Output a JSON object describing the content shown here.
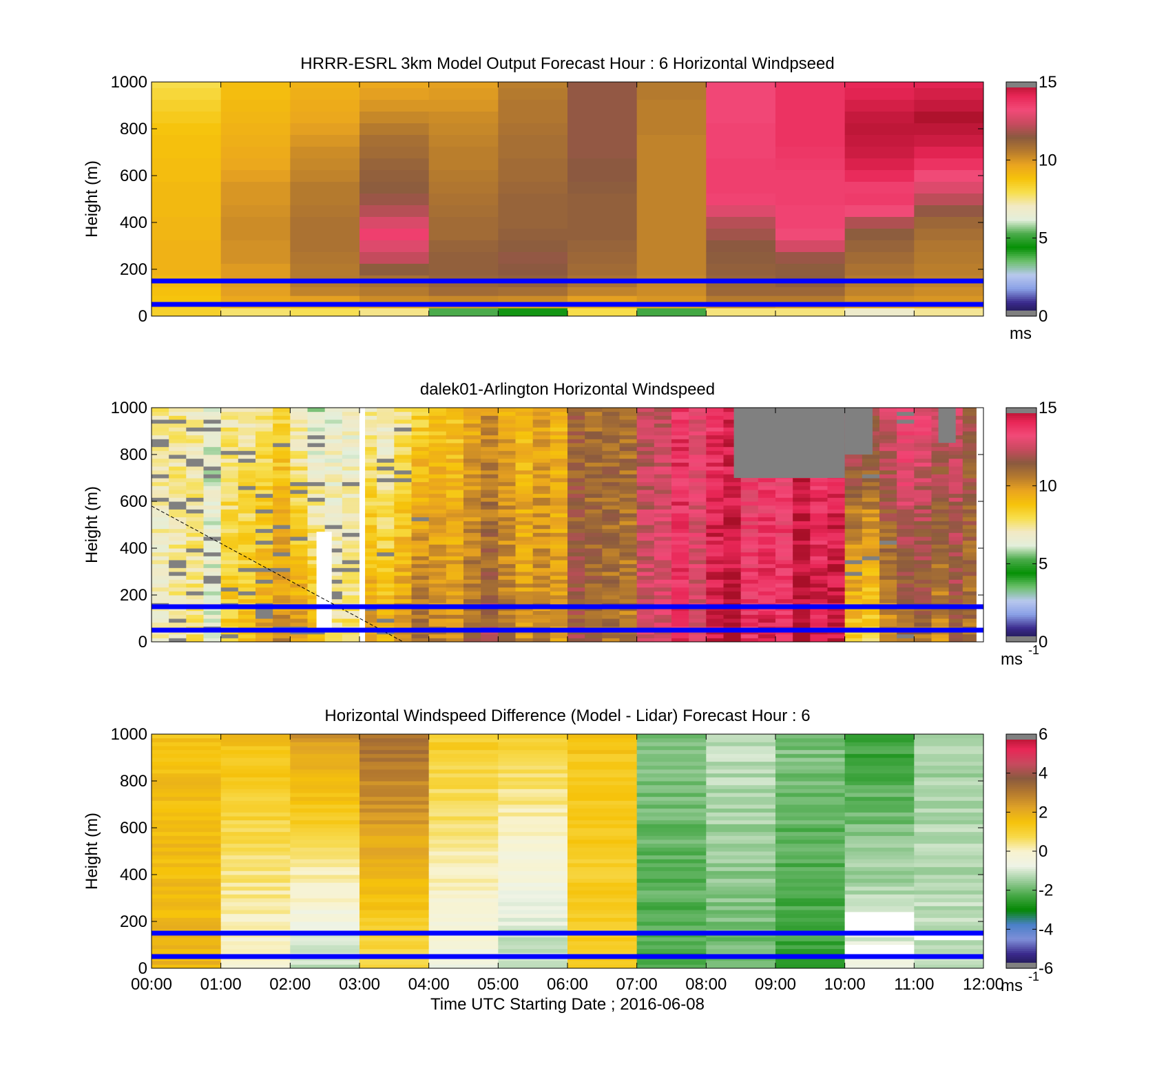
{
  "colors": {
    "speed_stops": [
      "#191440",
      "#3a2a8c",
      "#8aa0e6",
      "#b8c8ee",
      "#6cc06c",
      "#059005",
      "#4aab4a",
      "#e3efdb",
      "#f2e9c4",
      "#f7df4e",
      "#f6c30b",
      "#eaa41f",
      "#b57a2e",
      "#8a5a3f",
      "#c84a5f",
      "#f24a78",
      "#e82656",
      "#a80f28"
    ],
    "diff_stops": [
      "#191440",
      "#3a2a8c",
      "#7f8fd8",
      "#4a80c8",
      "#058805",
      "#46a846",
      "#9ccd9c",
      "#eef3e6",
      "#f8f3d0",
      "#f7d94a",
      "#f6c30b",
      "#dfa227",
      "#b57a2e",
      "#8a5a3f",
      "#c84a5f",
      "#e82656",
      "#a80f28"
    ],
    "missing": "#808080",
    "blank": "#ffffff",
    "level_line": "#0000ff"
  },
  "time_axis": {
    "labels": [
      "00:00",
      "01:00",
      "02:00",
      "03:00",
      "04:00",
      "05:00",
      "06:00",
      "07:00",
      "08:00",
      "09:00",
      "10:00",
      "11:00",
      "12:00"
    ],
    "xlabel": "Time UTC  Starting Date ; 2016-06-08"
  },
  "chart_data": [
    {
      "type": "heatmap",
      "title": "HRRR-ESRL 3km Model Output   Forecast Hour : 6 Horizontal Windpseed",
      "ylabel": "Height (m)",
      "yticks": [
        "0",
        "200",
        "400",
        "600",
        "800",
        "1000"
      ],
      "ylim": [
        0,
        1000
      ],
      "xlim_hours": [
        0,
        12
      ],
      "colorbar": {
        "range": [
          0,
          15
        ],
        "ticks": [
          "0",
          "5",
          "10",
          "15"
        ],
        "unit": "ms"
      },
      "level_lines_m": [
        50,
        150
      ],
      "value_units": "m/s",
      "hours": [
        0.5,
        1.5,
        2.5,
        3.5,
        4.5,
        5.5,
        6.5,
        7.5,
        8.5,
        9.5,
        10.5,
        11.5
      ],
      "heights_m": [
        20,
        50,
        75,
        100,
        150,
        200,
        250,
        300,
        350,
        400,
        450,
        500,
        550,
        600,
        650,
        700,
        750,
        800,
        850,
        900,
        950,
        1000
      ],
      "values": [
        [
          8.4,
          8.6,
          8.8,
          8.9,
          9.1,
          9.3,
          9.3,
          9.3,
          9.2,
          9.2,
          9.1,
          9.1,
          9.1,
          9.0,
          9.0,
          8.9,
          8.9,
          8.8,
          8.6,
          8.4,
          8.2,
          8.0
        ],
        [
          7.7,
          9.3,
          9.6,
          9.8,
          9.9,
          9.9,
          10.1,
          10.1,
          10.2,
          10.2,
          10.1,
          10.0,
          10.0,
          9.8,
          9.6,
          9.5,
          9.4,
          9.3,
          9.2,
          9.1,
          9.0,
          9.0
        ],
        [
          7.9,
          9.2,
          9.8,
          10.4,
          10.6,
          10.6,
          10.7,
          10.8,
          10.8,
          10.8,
          10.7,
          10.6,
          10.6,
          10.4,
          10.3,
          10.2,
          10.0,
          9.8,
          9.6,
          9.5,
          9.4,
          9.3
        ],
        [
          7.5,
          9.6,
          10.2,
          10.6,
          10.9,
          11.4,
          12.3,
          12.8,
          13.5,
          12.7,
          12.1,
          11.7,
          11.4,
          11.3,
          11.2,
          11.0,
          10.9,
          10.6,
          10.3,
          10.0,
          9.8,
          9.6
        ],
        [
          5.3,
          9.9,
          10.3,
          11.0,
          11.2,
          11.3,
          11.3,
          11.2,
          11.0,
          11.0,
          10.9,
          10.8,
          10.7,
          10.6,
          10.5,
          10.5,
          10.4,
          10.3,
          10.2,
          10.0,
          9.9,
          9.8
        ],
        [
          4.6,
          9.6,
          10.2,
          10.9,
          11.3,
          11.5,
          11.6,
          11.4,
          11.3,
          11.2,
          11.2,
          11.2,
          11.1,
          11.0,
          11.0,
          10.9,
          10.9,
          10.8,
          10.7,
          10.7,
          10.6,
          10.5
        ],
        [
          8.0,
          9.4,
          9.8,
          10.4,
          10.8,
          11.0,
          11.1,
          11.2,
          11.3,
          11.3,
          11.3,
          11.3,
          11.4,
          11.5,
          11.5,
          11.6,
          11.6,
          11.6,
          11.6,
          11.6,
          11.6,
          11.6
        ],
        [
          5.2,
          9.6,
          10.0,
          10.2,
          10.3,
          10.4,
          10.4,
          10.4,
          10.4,
          10.4,
          10.4,
          10.4,
          10.4,
          10.4,
          10.4,
          10.4,
          10.4,
          10.5,
          10.5,
          10.5,
          10.6,
          10.6
        ],
        [
          7.6,
          10.1,
          10.6,
          11.1,
          11.2,
          11.3,
          11.4,
          11.5,
          11.8,
          12.1,
          12.8,
          13.4,
          13.5,
          13.5,
          13.5,
          13.4,
          13.4,
          13.4,
          13.3,
          13.3,
          13.3,
          13.3
        ],
        [
          7.6,
          9.9,
          10.6,
          11.1,
          11.4,
          11.4,
          11.7,
          12.6,
          13.2,
          13.4,
          13.4,
          13.5,
          13.5,
          13.5,
          13.6,
          13.7,
          13.8,
          13.8,
          13.8,
          13.8,
          13.8,
          13.8
        ],
        [
          6.8,
          9.6,
          10.1,
          10.4,
          10.6,
          10.8,
          11.0,
          11.2,
          11.4,
          12.0,
          13.2,
          13.6,
          13.5,
          14.0,
          14.3,
          14.5,
          14.6,
          14.7,
          14.6,
          14.4,
          14.2,
          14.1
        ],
        [
          7.4,
          9.6,
          10.0,
          10.2,
          10.4,
          10.5,
          10.6,
          10.7,
          10.9,
          11.1,
          11.6,
          12.2,
          12.8,
          13.2,
          13.8,
          14.2,
          14.5,
          14.7,
          14.9,
          14.6,
          14.4,
          14.2
        ]
      ]
    },
    {
      "type": "heatmap",
      "title": "dalek01-Arlington  Horizontal Windspeed",
      "ylabel": "Height (m)",
      "yticks": [
        "0",
        "200",
        "400",
        "600",
        "800",
        "1000"
      ],
      "ylim": [
        0,
        1000
      ],
      "xlim_hours": [
        0,
        12
      ],
      "colorbar": {
        "range": [
          0,
          15
        ],
        "ticks": [
          "0",
          "5",
          "10",
          "15"
        ],
        "unit": "ms",
        "unit_exp": "-1"
      },
      "level_lines_m": [
        50,
        150
      ],
      "dashed_line": {
        "x_hours": [
          0.0,
          3.63
        ],
        "y_m": [
          580,
          0
        ]
      },
      "value_units": "m/s",
      "data_end_hour": 11.9,
      "columns_per_hour": 4,
      "rows": 60,
      "column_profiles": [
        {
          "from": 0.0,
          "to": 0.5,
          "v_bottom": 6.6,
          "v_top": 7.0,
          "missing": 0.14
        },
        {
          "from": 0.5,
          "to": 1.0,
          "v_bottom": 7.3,
          "v_top": 6.8,
          "missing": 0.12
        },
        {
          "from": 1.0,
          "to": 1.5,
          "v_bottom": 8.6,
          "v_top": 7.2,
          "missing": 0.08
        },
        {
          "from": 1.5,
          "to": 2.0,
          "v_bottom": 9.6,
          "v_top": 7.5,
          "missing": 0.08
        },
        {
          "from": 2.0,
          "to": 2.5,
          "v_bottom": 9.8,
          "v_top": 6.6,
          "missing": 0.06
        },
        {
          "from": 2.5,
          "to": 3.0,
          "v_bottom": 7.6,
          "v_top": 6.4,
          "missing": 0.05
        },
        {
          "from": 3.0,
          "to": 3.5,
          "v_bottom": 9.9,
          "v_top": 7.2,
          "missing": 0.04
        },
        {
          "from": 3.5,
          "to": 4.0,
          "v_bottom": 10.6,
          "v_top": 7.8,
          "missing": 0.02
        },
        {
          "from": 4.0,
          "to": 4.5,
          "v_bottom": 10.9,
          "v_top": 9.3,
          "missing": 0.0
        },
        {
          "from": 4.5,
          "to": 5.0,
          "v_bottom": 11.0,
          "v_top": 9.4,
          "missing": 0.0
        },
        {
          "from": 5.0,
          "to": 5.5,
          "v_bottom": 10.8,
          "v_top": 9.6,
          "missing": 0.0
        },
        {
          "from": 5.5,
          "to": 6.0,
          "v_bottom": 10.6,
          "v_top": 9.8,
          "missing": 0.0
        },
        {
          "from": 6.0,
          "to": 6.5,
          "v_bottom": 10.8,
          "v_top": 10.4,
          "missing": 0.0
        },
        {
          "from": 6.5,
          "to": 7.0,
          "v_bottom": 10.9,
          "v_top": 11.3,
          "missing": 0.0
        },
        {
          "from": 7.0,
          "to": 7.5,
          "v_bottom": 12.8,
          "v_top": 12.3,
          "missing": 0.0
        },
        {
          "from": 7.5,
          "to": 8.0,
          "v_bottom": 13.5,
          "v_top": 13.6,
          "missing": 0.0
        },
        {
          "from": 8.0,
          "to": 8.5,
          "v_bottom": 14.5,
          "v_top": 13.8,
          "missing": 0.0
        },
        {
          "from": 8.5,
          "to": 9.0,
          "v_bottom": 14.6,
          "v_top": 13.7,
          "missing": 0.0
        },
        {
          "from": 9.0,
          "to": 9.5,
          "v_bottom": 14.4,
          "v_top": 13.8,
          "missing": 0.0
        },
        {
          "from": 9.5,
          "to": 10.0,
          "v_bottom": 14.3,
          "v_top": 13.6,
          "missing": 0.0
        },
        {
          "from": 10.0,
          "to": 10.5,
          "v_bottom": 8.6,
          "v_top": 12.6,
          "missing": 0.03
        },
        {
          "from": 10.5,
          "to": 11.0,
          "v_bottom": 10.2,
          "v_top": 13.2,
          "missing": 0.02
        },
        {
          "from": 11.0,
          "to": 11.5,
          "v_bottom": 10.6,
          "v_top": 12.8,
          "missing": 0.0
        },
        {
          "from": 11.5,
          "to": 11.9,
          "v_bottom": 11.4,
          "v_top": 12.4,
          "missing": 0.0
        }
      ],
      "missing_regions": [
        {
          "x_hours": [
            8.4,
            10.0
          ],
          "y_m": [
            700,
            1000
          ],
          "top_edge_m": 1000,
          "note": "grey missing-data block aloft"
        },
        {
          "x_hours": [
            10.0,
            10.4
          ],
          "y_m": [
            800,
            1000
          ]
        },
        {
          "x_hours": [
            11.35,
            11.6
          ],
          "y_m": [
            850,
            1000
          ]
        }
      ],
      "blank_regions": [
        {
          "x_hours": [
            2.38,
            2.6
          ],
          "y_m": [
            50,
            470
          ]
        },
        {
          "x_hours": [
            3.0,
            3.08
          ],
          "y_m": [
            0,
            1000
          ]
        }
      ]
    },
    {
      "type": "heatmap",
      "title": "Horizontal Windspeed Difference (Model - Lidar) Forecast Hour : 6",
      "xlabel": "Time UTC  Starting Date ; 2016-06-08",
      "ylabel": "Height (m)",
      "yticks": [
        "0",
        "200",
        "400",
        "600",
        "800",
        "1000"
      ],
      "ylim": [
        0,
        1000
      ],
      "xlim_hours": [
        0,
        12
      ],
      "colorbar": {
        "range": [
          -6,
          6
        ],
        "ticks": [
          "-6",
          "-4",
          "-2",
          "0",
          "2",
          "4",
          "6"
        ],
        "unit": "ms",
        "unit_exp": "-1"
      },
      "level_lines_m": [
        50,
        150
      ],
      "value_units": "m/s",
      "rows": 60,
      "column_profiles": [
        {
          "from": 0,
          "to": 1,
          "v_bottom": 1.9,
          "v_top": 1.6
        },
        {
          "from": 1,
          "to": 2,
          "v_bottom": -0.3,
          "v_top": 1.5
        },
        {
          "from": 2,
          "to": 3,
          "v_bottom": -1.2,
          "v_top": 2.6
        },
        {
          "from": 3,
          "to": 4,
          "v_bottom": 0.6,
          "v_top": 3.2
        },
        {
          "from": 4,
          "to": 5,
          "v_bottom": -0.4,
          "v_top": 1.3
        },
        {
          "from": 5,
          "to": 6,
          "v_bottom": -1.2,
          "v_top": 1.2
        },
        {
          "from": 6,
          "to": 7,
          "v_bottom": 1.1,
          "v_top": 1.4
        },
        {
          "from": 7,
          "to": 8,
          "v_bottom": -2.1,
          "v_top": -1.5
        },
        {
          "from": 8,
          "to": 9,
          "v_bottom": -2.0,
          "v_top": -1.2
        },
        {
          "from": 9,
          "to": 10,
          "v_bottom": -2.4,
          "v_top": -1.7
        },
        {
          "from": 10,
          "to": 11,
          "v_bottom": -0.6,
          "v_top": -2.4
        },
        {
          "from": 11,
          "to": 12,
          "v_bottom": -1.0,
          "v_top": -1.3
        }
      ],
      "blank_regions": [
        {
          "x_hours": [
            10.0,
            11.0
          ],
          "y_m": [
            160,
            240
          ]
        },
        {
          "x_hours": [
            10.0,
            11.0
          ],
          "y_m": [
            60,
            100
          ]
        },
        {
          "x_hours": [
            11.0,
            12.0
          ],
          "y_m": [
            120,
            150
          ]
        }
      ]
    }
  ]
}
